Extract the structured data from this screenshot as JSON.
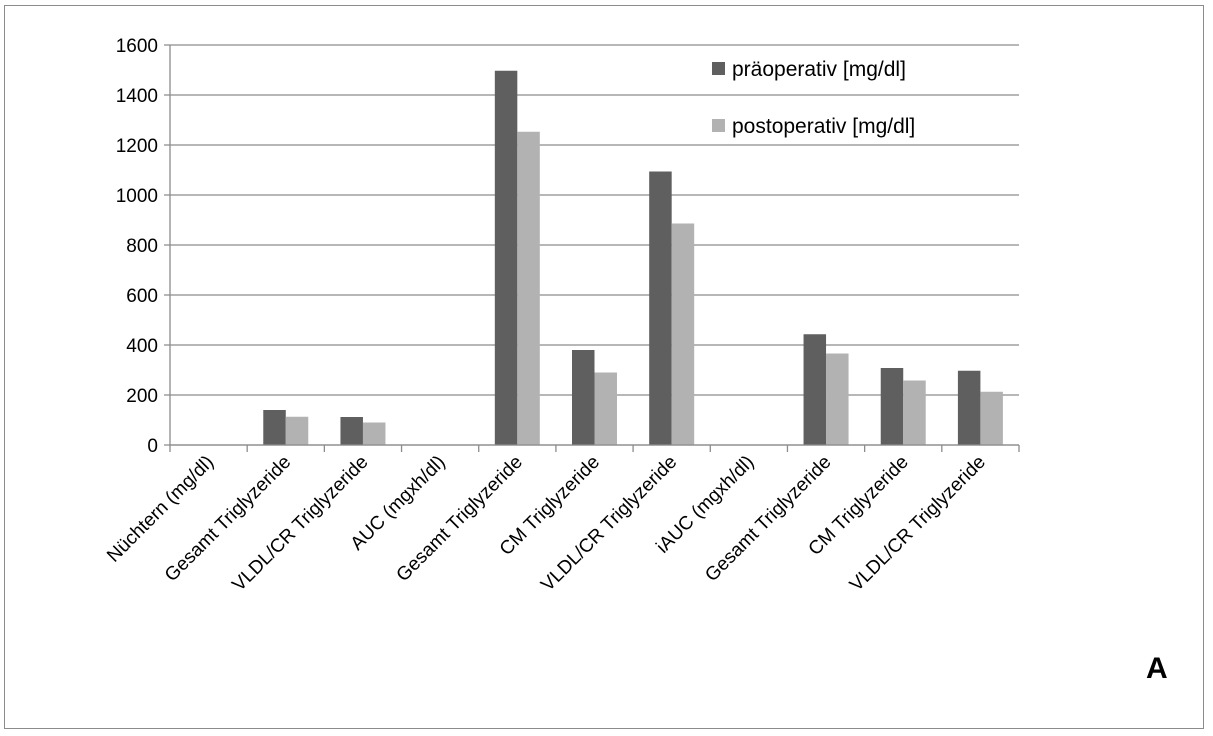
{
  "chart_data": {
    "type": "bar",
    "categories": [
      "Nüchtern (mg/dl)",
      "Gesamt Triglyzeride",
      "VLDL/CR Triglyzeride",
      "AUC (mgxh/dl)",
      "Gesamt Triglyzeride",
      "CM Triglyzeride",
      "VLDL/CR Triglyzeride",
      "iAUC (mgxh/dl)",
      "Gesamt Triglyzeride",
      "CM Triglyzeride",
      "VLDL/CR Triglyzeride"
    ],
    "series": [
      {
        "name": "präoperativ [mg/dl]",
        "values": [
          null,
          140,
          112,
          null,
          1497,
          380,
          1094,
          null,
          443,
          308,
          297
        ]
      },
      {
        "name": "postoperativ [mg/dl]",
        "values": [
          null,
          113,
          90,
          null,
          1253,
          290,
          886,
          null,
          366,
          258,
          213
        ]
      }
    ],
    "ylim": [
      0,
      1600
    ],
    "yticks": [
      0,
      200,
      400,
      600,
      800,
      1000,
      1200,
      1400,
      1600
    ],
    "grid": true,
    "legend_position": "top-right",
    "colors": {
      "präoperativ": "#5f5f5f",
      "postoperativ": "#b2b2b2",
      "grid": "#8c8c8c",
      "axis": "#8c8c8c"
    },
    "panel_label": "A"
  }
}
